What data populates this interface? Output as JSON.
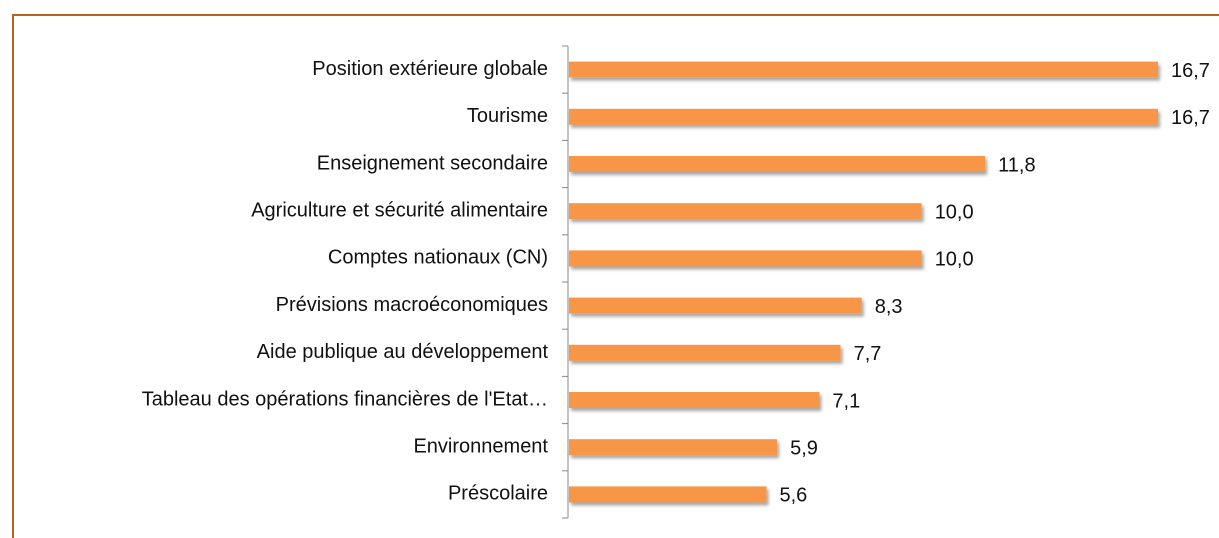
{
  "chart_data": {
    "type": "bar",
    "orientation": "horizontal",
    "color": "#f79646",
    "categories": [
      "Position extérieure globale",
      "Tourisme",
      "Enseignement secondaire",
      "Agriculture et  sécurité alimentaire",
      "Comptes nationaux (CN)",
      "Prévisions macroéconomiques",
      "Aide publique au développement",
      "Tableau des opérations financières de l'Etat…",
      "Environnement",
      "Préscolaire"
    ],
    "values": [
      16.7,
      16.7,
      11.8,
      10.0,
      10.0,
      8.3,
      7.7,
      7.1,
      5.9,
      5.6
    ],
    "value_labels": [
      "16,7",
      "16,7",
      "11,8",
      "10,0",
      "10,0",
      "8,3",
      "7,7",
      "7,1",
      "5,9",
      "5,6"
    ]
  }
}
